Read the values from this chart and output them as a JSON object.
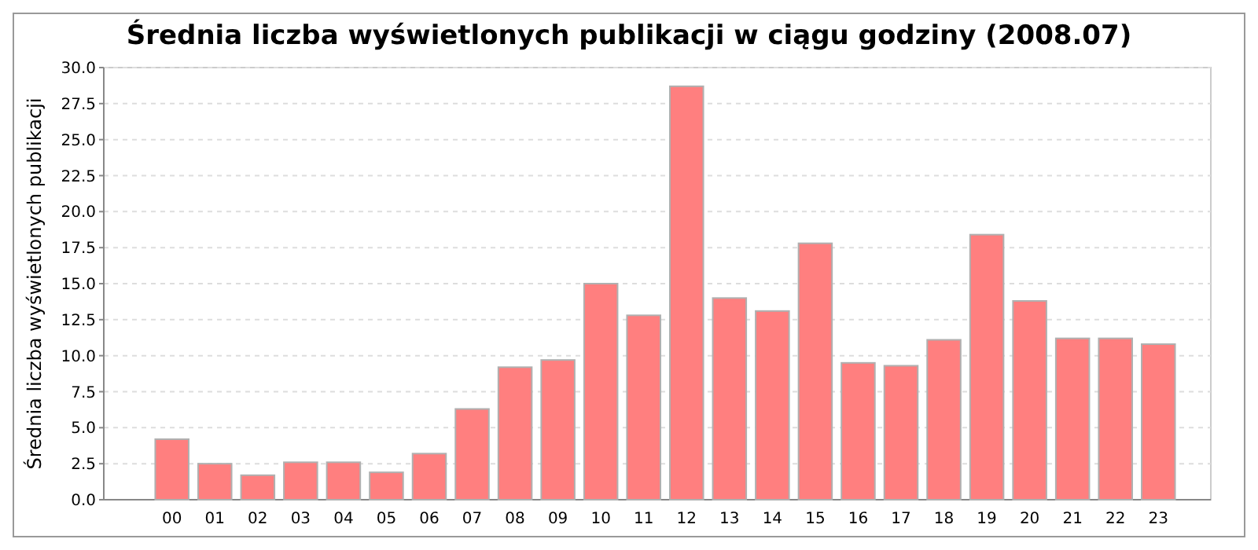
{
  "chart_data": {
    "type": "bar",
    "title": "Średnia liczba wyświetlonych publikacji w ciągu godziny (2008.07)",
    "ylabel": "Średnia liczba wyświetlonych publikacji",
    "categories": [
      "00",
      "01",
      "02",
      "03",
      "04",
      "05",
      "06",
      "07",
      "08",
      "09",
      "10",
      "11",
      "12",
      "13",
      "14",
      "15",
      "16",
      "17",
      "18",
      "19",
      "20",
      "21",
      "22",
      "23"
    ],
    "values": [
      4.2,
      2.5,
      1.7,
      2.6,
      2.6,
      1.9,
      3.2,
      6.3,
      9.2,
      9.7,
      15.0,
      12.8,
      28.7,
      14.0,
      13.1,
      17.8,
      9.5,
      9.3,
      11.1,
      18.4,
      13.8,
      11.2,
      11.2,
      10.8
    ],
    "color": "#ff7f7f",
    "ylim": [
      0,
      30
    ],
    "yticks": [
      {
        "value": 0,
        "label": "0.0"
      },
      {
        "value": 2.5,
        "label": "2.5"
      },
      {
        "value": 5,
        "label": "5.0"
      },
      {
        "value": 7.5,
        "label": "7.5"
      },
      {
        "value": 10,
        "label": "10.0"
      },
      {
        "value": 12.5,
        "label": "12.5"
      },
      {
        "value": 15,
        "label": "15.0"
      },
      {
        "value": 17.5,
        "label": "17.5"
      },
      {
        "value": 20,
        "label": "20.0"
      },
      {
        "value": 22.5,
        "label": "22.5"
      },
      {
        "value": 25,
        "label": "25.0"
      },
      {
        "value": 27.5,
        "label": "27.5"
      },
      {
        "value": 30,
        "label": "30.0"
      }
    ],
    "grid": "y"
  }
}
